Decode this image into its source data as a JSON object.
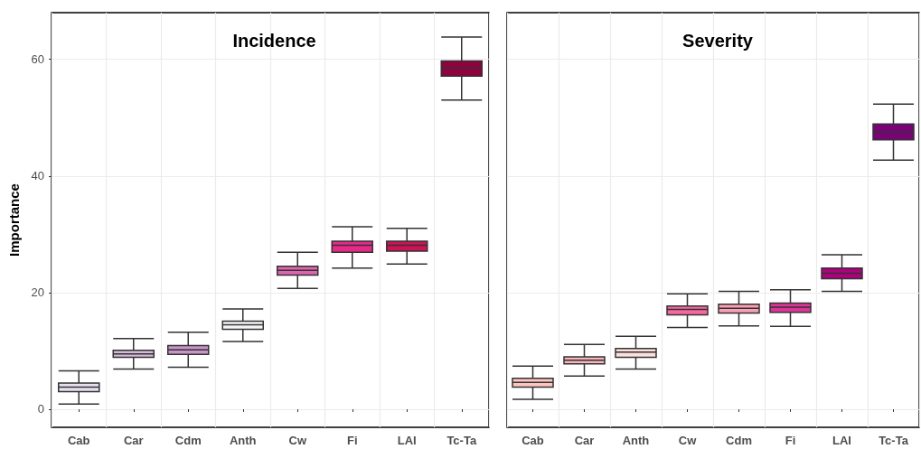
{
  "chart_data": [
    {
      "type": "box",
      "title": "Incidence",
      "ylabel": "Importance",
      "categories": [
        "Cab",
        "Car",
        "Cdm",
        "Anth",
        "Cw",
        "Fi",
        "LAI",
        "Tc-Ta"
      ],
      "boxes": [
        {
          "low": 0.9,
          "q1": 3.0,
          "median": 3.8,
          "q3": 4.5,
          "high": 6.6
        },
        {
          "low": 6.9,
          "q1": 8.9,
          "median": 9.5,
          "q3": 10.1,
          "high": 12.1
        },
        {
          "low": 7.2,
          "q1": 9.4,
          "median": 10.2,
          "q3": 10.9,
          "high": 13.2
        },
        {
          "low": 11.6,
          "q1": 13.7,
          "median": 14.5,
          "q3": 15.1,
          "high": 17.2
        },
        {
          "low": 20.7,
          "q1": 23.0,
          "median": 23.8,
          "q3": 24.5,
          "high": 26.9
        },
        {
          "low": 24.2,
          "q1": 26.9,
          "median": 28.1,
          "q3": 28.8,
          "high": 31.3
        },
        {
          "low": 24.9,
          "q1": 27.1,
          "median": 28.1,
          "q3": 28.8,
          "high": 31.0
        },
        {
          "low": 53.0,
          "q1": 57.1,
          "median": 58.5,
          "q3": 59.7,
          "high": 63.8
        }
      ],
      "colors": [
        "#e7e1ef",
        "#d4b9da",
        "#c994c7",
        "#f7f4f9",
        "#df65b0",
        "#e7298a",
        "#ce1256",
        "#91003f"
      ],
      "ylim": [
        -3.1,
        68
      ],
      "yticks": [
        0,
        20,
        40,
        60
      ],
      "grid": true
    },
    {
      "type": "box",
      "title": "Severity",
      "categories": [
        "Cab",
        "Car",
        "Anth",
        "Cw",
        "Cdm",
        "Fi",
        "LAI",
        "Tc-Ta"
      ],
      "boxes": [
        {
          "low": 1.7,
          "q1": 3.8,
          "median": 4.6,
          "q3": 5.3,
          "high": 7.4
        },
        {
          "low": 5.7,
          "q1": 7.8,
          "median": 8.4,
          "q3": 9.0,
          "high": 11.1
        },
        {
          "low": 6.9,
          "q1": 8.9,
          "median": 9.8,
          "q3": 10.4,
          "high": 12.5
        },
        {
          "low": 14.0,
          "q1": 16.2,
          "median": 17.1,
          "q3": 17.7,
          "high": 19.8
        },
        {
          "low": 14.3,
          "q1": 16.5,
          "median": 17.3,
          "q3": 18.0,
          "high": 20.2
        },
        {
          "low": 14.2,
          "q1": 16.6,
          "median": 17.5,
          "q3": 18.2,
          "high": 20.5
        },
        {
          "low": 20.2,
          "q1": 22.4,
          "median": 23.3,
          "q3": 24.2,
          "high": 26.5
        },
        {
          "low": 42.7,
          "q1": 46.2,
          "median": 47.5,
          "q3": 48.9,
          "high": 52.3
        }
      ],
      "colors": [
        "#fcc5c0",
        "#fbb4b9",
        "#fde0dd",
        "#f768a1",
        "#fa9fb5",
        "#dd3497",
        "#ae017e",
        "#7a0177"
      ],
      "ylim": [
        -3.1,
        68
      ],
      "yticks": [
        0,
        20,
        40,
        60
      ],
      "grid": true,
      "tick_labels": "x"
    }
  ]
}
